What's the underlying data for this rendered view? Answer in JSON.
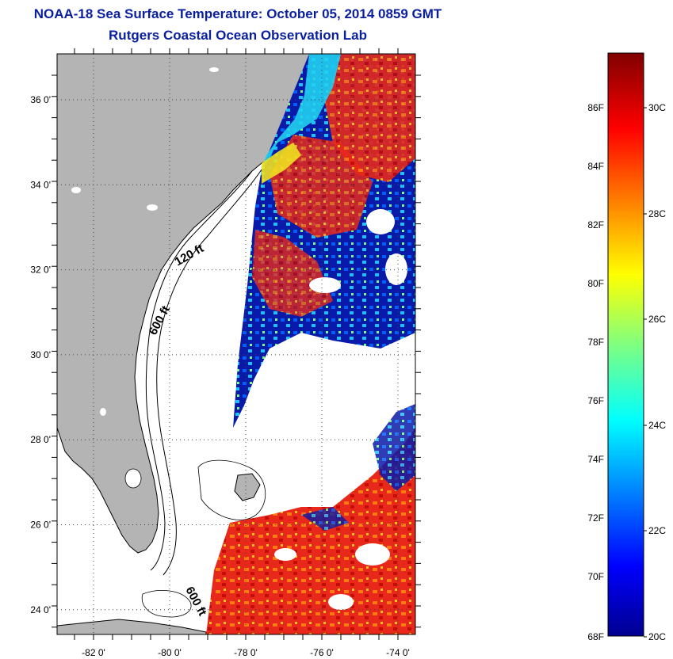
{
  "header": {
    "title": "NOAA-18 Sea Surface Temperature:  October 05, 2014 0859 GMT",
    "subtitle": "Rutgers Coastal Ocean Observation Lab"
  },
  "map": {
    "lat_labels": [
      "36 0'",
      "34 0'",
      "32 0'",
      "30 0'",
      "28 0'",
      "26 0'",
      "24 0'"
    ],
    "lon_labels": [
      "-82 0'",
      "-80 0'",
      "-78 0'",
      "-76 0'",
      "-74 0'"
    ],
    "contour_labels": [
      "120 ft",
      "600 ft",
      "600 ft"
    ],
    "colors": {
      "land": "#b4b4b4",
      "ocean_nodata": "#ffffff",
      "grid": "#555555"
    }
  },
  "colorbar": {
    "fahrenheit_labels": [
      "86F",
      "84F",
      "82F",
      "80F",
      "78F",
      "76F",
      "74F",
      "72F",
      "70F",
      "68F"
    ],
    "celsius_labels": [
      "30C",
      "28C",
      "26C",
      "24C",
      "22C",
      "20C"
    ],
    "range_f": [
      68,
      88
    ],
    "colormap": "jet"
  }
}
